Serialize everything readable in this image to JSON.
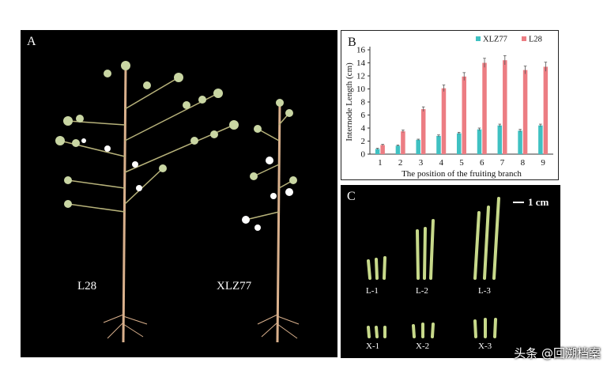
{
  "panel_a": {
    "label": "A",
    "plant_left_label": "L28",
    "plant_right_label": "XLZ77"
  },
  "panel_b": {
    "label": "B"
  },
  "panel_c": {
    "label": "C",
    "scale_label": "1 cm",
    "samples": [
      "L-1",
      "L-2",
      "L-3",
      "X-1",
      "X-2",
      "X-3"
    ]
  },
  "watermark": "头条 @回溯档案",
  "colors": {
    "xlz77": "#3fc1c2",
    "l28": "#ec7d83"
  },
  "chart_data": {
    "type": "bar",
    "xlabel": "The position of the fruiting branch",
    "ylabel": "Internode Length (cm)",
    "categories": [
      "1",
      "2",
      "3",
      "4",
      "5",
      "6",
      "7",
      "8",
      "9"
    ],
    "ylim": [
      0,
      16
    ],
    "yticks": [
      "0",
      "2",
      "4",
      "6",
      "8",
      "10",
      "12",
      "14",
      "16"
    ],
    "legend_position": "top",
    "series": [
      {
        "name": "XLZ77",
        "values": [
          0.8,
          1.3,
          2.2,
          2.8,
          3.2,
          3.8,
          4.4,
          3.6,
          4.4
        ],
        "errors": [
          0.1,
          0.1,
          0.1,
          0.15,
          0.15,
          0.2,
          0.2,
          0.2,
          0.2
        ]
      },
      {
        "name": "L28",
        "values": [
          1.4,
          3.5,
          6.9,
          10.1,
          11.9,
          14.0,
          14.4,
          12.9,
          13.4
        ],
        "errors": [
          0.1,
          0.2,
          0.35,
          0.5,
          0.6,
          0.7,
          0.7,
          0.6,
          0.7
        ]
      }
    ]
  }
}
